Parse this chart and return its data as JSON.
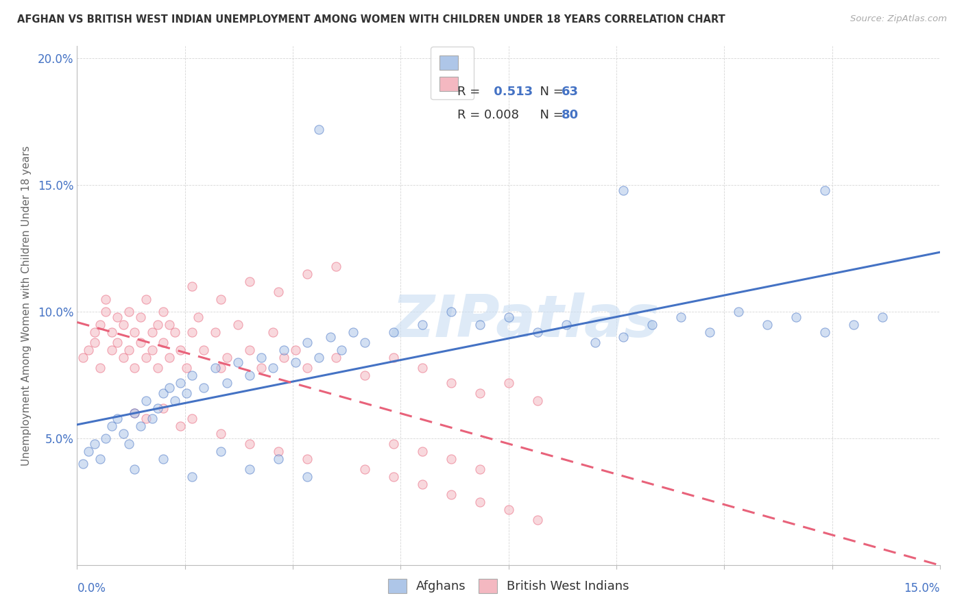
{
  "title": "AFGHAN VS BRITISH WEST INDIAN UNEMPLOYMENT AMONG WOMEN WITH CHILDREN UNDER 18 YEARS CORRELATION CHART",
  "source": "Source: ZipAtlas.com",
  "ylabel": "Unemployment Among Women with Children Under 18 years",
  "xmin": 0.0,
  "xmax": 0.15,
  "ymin": 0.0,
  "ymax": 0.205,
  "ytick_vals": [
    0.0,
    0.05,
    0.1,
    0.15,
    0.2
  ],
  "ytick_labels": [
    "",
    "5.0%",
    "10.0%",
    "15.0%",
    "20.0%"
  ],
  "watermark": "ZIPatlas",
  "color_afghan": "#aec6e8",
  "color_bwi": "#f4b8c1",
  "color_afghan_line": "#4472c4",
  "color_bwi_line": "#e8627a",
  "background_color": "#ffffff",
  "grid_color": "#cccccc",
  "title_color": "#333333",
  "source_color": "#aaaaaa",
  "legend_text_color": "#333333",
  "legend_value_color": "#4472c4",
  "scatter_size": 90,
  "scatter_alpha": 0.55,
  "line_width": 2.2,
  "afghan_x": [
    0.001,
    0.002,
    0.003,
    0.004,
    0.005,
    0.006,
    0.007,
    0.008,
    0.009,
    0.01,
    0.011,
    0.012,
    0.013,
    0.014,
    0.015,
    0.016,
    0.017,
    0.018,
    0.019,
    0.02,
    0.022,
    0.024,
    0.026,
    0.028,
    0.03,
    0.032,
    0.034,
    0.036,
    0.038,
    0.04,
    0.042,
    0.044,
    0.046,
    0.048,
    0.05,
    0.055,
    0.06,
    0.065,
    0.07,
    0.075,
    0.08,
    0.085,
    0.09,
    0.095,
    0.1,
    0.105,
    0.11,
    0.115,
    0.12,
    0.125,
    0.13,
    0.135,
    0.14,
    0.01,
    0.015,
    0.02,
    0.025,
    0.03,
    0.035,
    0.04,
    0.042,
    0.095,
    0.13
  ],
  "afghan_y": [
    0.04,
    0.045,
    0.048,
    0.042,
    0.05,
    0.055,
    0.058,
    0.052,
    0.048,
    0.06,
    0.055,
    0.065,
    0.058,
    0.062,
    0.068,
    0.07,
    0.065,
    0.072,
    0.068,
    0.075,
    0.07,
    0.078,
    0.072,
    0.08,
    0.075,
    0.082,
    0.078,
    0.085,
    0.08,
    0.088,
    0.082,
    0.09,
    0.085,
    0.092,
    0.088,
    0.092,
    0.095,
    0.1,
    0.095,
    0.098,
    0.092,
    0.095,
    0.088,
    0.09,
    0.095,
    0.098,
    0.092,
    0.1,
    0.095,
    0.098,
    0.092,
    0.095,
    0.098,
    0.038,
    0.042,
    0.035,
    0.045,
    0.038,
    0.042,
    0.035,
    0.172,
    0.148,
    0.148
  ],
  "bwi_x": [
    0.001,
    0.002,
    0.003,
    0.003,
    0.004,
    0.004,
    0.005,
    0.005,
    0.006,
    0.006,
    0.007,
    0.007,
    0.008,
    0.008,
    0.009,
    0.009,
    0.01,
    0.01,
    0.011,
    0.011,
    0.012,
    0.012,
    0.013,
    0.013,
    0.014,
    0.014,
    0.015,
    0.015,
    0.016,
    0.016,
    0.017,
    0.018,
    0.019,
    0.02,
    0.021,
    0.022,
    0.024,
    0.025,
    0.026,
    0.028,
    0.03,
    0.032,
    0.034,
    0.036,
    0.038,
    0.04,
    0.045,
    0.05,
    0.055,
    0.06,
    0.065,
    0.07,
    0.075,
    0.08,
    0.01,
    0.012,
    0.015,
    0.018,
    0.02,
    0.025,
    0.03,
    0.035,
    0.04,
    0.05,
    0.055,
    0.06,
    0.065,
    0.07,
    0.075,
    0.08,
    0.02,
    0.025,
    0.03,
    0.035,
    0.04,
    0.045,
    0.055,
    0.06,
    0.065,
    0.07
  ],
  "bwi_y": [
    0.082,
    0.085,
    0.088,
    0.092,
    0.078,
    0.095,
    0.1,
    0.105,
    0.085,
    0.092,
    0.098,
    0.088,
    0.082,
    0.095,
    0.1,
    0.085,
    0.092,
    0.078,
    0.098,
    0.088,
    0.082,
    0.105,
    0.092,
    0.085,
    0.095,
    0.078,
    0.1,
    0.088,
    0.082,
    0.095,
    0.092,
    0.085,
    0.078,
    0.092,
    0.098,
    0.085,
    0.092,
    0.078,
    0.082,
    0.095,
    0.085,
    0.078,
    0.092,
    0.082,
    0.085,
    0.078,
    0.082,
    0.075,
    0.082,
    0.078,
    0.072,
    0.068,
    0.072,
    0.065,
    0.06,
    0.058,
    0.062,
    0.055,
    0.058,
    0.052,
    0.048,
    0.045,
    0.042,
    0.038,
    0.035,
    0.032,
    0.028,
    0.025,
    0.022,
    0.018,
    0.11,
    0.105,
    0.112,
    0.108,
    0.115,
    0.118,
    0.048,
    0.045,
    0.042,
    0.038
  ]
}
